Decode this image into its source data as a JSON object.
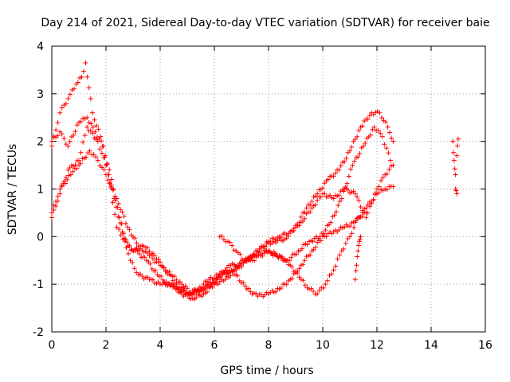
{
  "chart_data": {
    "type": "scatter",
    "title": "Day 214 of 2021, Sidereal Day-to-day VTEC variation (SDTVAR) for receiver baie",
    "xlabel": "GPS time / hours",
    "ylabel": "SDTVAR / TECUs",
    "xlim": [
      0,
      16
    ],
    "ylim": [
      -2,
      4
    ],
    "xticks": [
      "0",
      "2",
      "4",
      "6",
      "8",
      "10",
      "12",
      "14",
      "16"
    ],
    "yticks": [
      "-2",
      "-1",
      "0",
      "1",
      "2",
      "3",
      "4"
    ],
    "grid": true,
    "marker": "+",
    "series_color": "#ff0000",
    "series": [
      {
        "x": [
          0.0,
          0.3,
          0.6,
          0.9,
          1.1,
          1.25,
          1.5,
          1.8,
          2.1,
          2.4,
          2.7,
          3.0,
          3.4,
          3.8,
          4.2,
          4.6,
          5.0,
          5.4,
          5.8,
          6.2,
          6.6,
          7.0,
          7.4,
          7.8,
          8.2,
          8.6,
          9.0,
          9.4,
          9.8,
          10.2,
          10.6,
          11.0,
          11.4,
          11.8,
          12.1,
          12.4,
          12.6
        ],
        "y": [
          1.9,
          2.6,
          2.9,
          3.2,
          3.35,
          3.65,
          2.6,
          2.1,
          1.3,
          0.2,
          -0.1,
          -0.3,
          -0.2,
          -0.4,
          -0.7,
          -1.0,
          -1.2,
          -1.1,
          -0.9,
          -0.8,
          -0.6,
          -0.6,
          -0.4,
          -0.2,
          -0.1,
          -0.05,
          0.2,
          0.6,
          0.9,
          1.2,
          1.4,
          1.8,
          2.3,
          2.6,
          2.6,
          2.3,
          2.0
        ]
      },
      {
        "x": [
          0.0,
          0.3,
          0.6,
          1.0,
          1.3,
          1.6,
          1.9,
          2.2,
          2.5,
          2.8,
          3.1,
          3.5,
          3.9,
          4.3,
          4.7,
          5.1,
          5.5,
          5.9,
          6.3,
          6.7,
          7.1,
          7.5,
          7.9,
          8.3,
          8.7,
          9.1,
          9.5,
          9.9,
          10.3,
          10.7,
          11.1,
          11.5,
          11.9,
          12.2,
          12.5
        ],
        "y": [
          2.0,
          2.2,
          1.9,
          2.4,
          2.5,
          2.2,
          1.9,
          1.2,
          0.4,
          -0.2,
          -0.3,
          -0.5,
          -0.8,
          -1.0,
          -1.1,
          -1.2,
          -1.1,
          -1.0,
          -0.8,
          -0.7,
          -0.5,
          -0.4,
          -0.3,
          -0.4,
          -0.5,
          -0.3,
          -0.1,
          0.0,
          0.3,
          0.8,
          1.5,
          1.9,
          2.3,
          2.1,
          1.6
        ]
      },
      {
        "x": [
          0.0,
          0.3,
          0.6,
          1.0,
          1.3,
          1.7,
          2.0,
          2.3,
          2.6,
          2.9,
          3.2,
          3.6,
          4.0,
          4.4,
          4.8,
          5.2,
          5.6,
          6.0,
          6.4,
          6.8,
          7.2,
          7.6,
          8.0,
          8.4,
          8.8,
          9.2,
          9.6,
          10.0,
          10.4,
          10.8,
          11.2,
          11.6,
          12.0,
          12.3,
          12.6
        ],
        "y": [
          0.4,
          0.9,
          1.4,
          1.6,
          2.3,
          2.0,
          1.5,
          0.8,
          0.1,
          -0.5,
          -0.8,
          -0.9,
          -1.0,
          -1.0,
          -1.2,
          -1.3,
          -1.2,
          -1.0,
          -0.9,
          -0.7,
          -0.5,
          -0.3,
          -0.1,
          0.0,
          0.1,
          0.3,
          0.6,
          0.9,
          0.8,
          1.0,
          0.9,
          0.4,
          1.0,
          1.3,
          1.5
        ]
      },
      {
        "x": [
          0.0,
          0.3,
          0.7,
          1.0,
          1.4,
          1.7,
          2.0,
          2.4,
          2.8,
          3.2,
          3.6,
          4.0,
          4.4,
          4.8,
          5.2,
          5.6,
          6.0,
          6.4,
          6.8,
          7.2,
          7.6,
          8.0,
          8.4,
          8.8,
          9.2,
          9.6,
          10.0,
          10.4,
          10.8,
          11.2,
          11.6,
          12.0,
          12.3,
          12.6
        ],
        "y": [
          0.5,
          1.0,
          1.3,
          1.5,
          1.8,
          1.6,
          1.3,
          0.8,
          0.2,
          -0.2,
          -0.4,
          -0.6,
          -0.8,
          -1.0,
          -1.2,
          -1.1,
          -0.9,
          -0.7,
          -0.8,
          -1.1,
          -1.25,
          -1.2,
          -1.1,
          -0.9,
          -0.6,
          -0.3,
          0.0,
          0.1,
          0.2,
          0.3,
          0.6,
          0.9,
          1.0,
          1.05
        ]
      },
      {
        "x": [
          6.2,
          6.5,
          6.8,
          7.1,
          7.4,
          7.7,
          8.0,
          8.4,
          8.8,
          9.2,
          9.5,
          9.8,
          10.1,
          10.4,
          10.7,
          11.0,
          11.3,
          11.6
        ],
        "y": [
          0.0,
          -0.1,
          -0.3,
          -0.5,
          -0.5,
          -0.4,
          -0.3,
          -0.4,
          -0.6,
          -0.9,
          -1.1,
          -1.2,
          -1.0,
          -0.7,
          -0.3,
          0.0,
          0.4,
          0.5
        ]
      },
      {
        "x": [
          11.2,
          11.25,
          11.3,
          11.35,
          11.4,
          14.8,
          14.85,
          14.9,
          14.9,
          14.95,
          14.95,
          15.0
        ],
        "y": [
          -0.9,
          -0.6,
          -0.3,
          -0.1,
          0.0,
          2.0,
          1.6,
          1.3,
          1.0,
          0.9,
          1.7,
          2.05
        ]
      }
    ]
  }
}
